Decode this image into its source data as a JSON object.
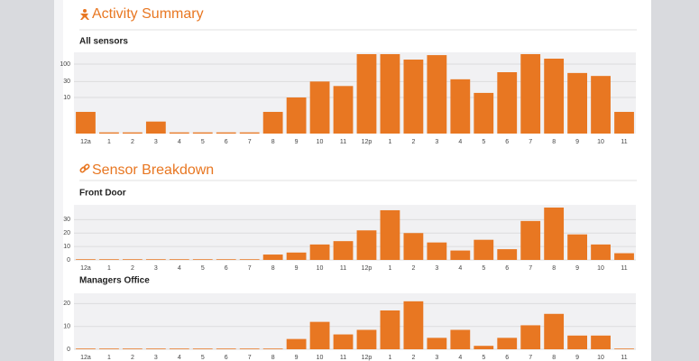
{
  "sections": [
    {
      "title": "Activity Summary"
    },
    {
      "title": "Sensor Breakdown"
    }
  ],
  "chart_data": [
    {
      "type": "bar",
      "title": "All sensors",
      "color": "#e87722",
      "log_scale": true,
      "grid": true,
      "categories": [
        "12a",
        "1",
        "2",
        "3",
        "4",
        "5",
        "6",
        "7",
        "8",
        "9",
        "10",
        "11",
        "12p",
        "1",
        "2",
        "3",
        "4",
        "5",
        "6",
        "7",
        "8",
        "9",
        "10",
        "11"
      ],
      "values": [
        3.7,
        0.9,
        0.9,
        1.9,
        0.9,
        0.9,
        0.9,
        0.9,
        3.7,
        10,
        30,
        22,
        198,
        198,
        136,
        185,
        35,
        13.7,
        57,
        198,
        145,
        54,
        44,
        3.7
      ],
      "ylim": [
        0.83,
        224
      ],
      "yticks": [
        10,
        30,
        100
      ]
    },
    {
      "type": "bar",
      "title": "Front Door",
      "color": "#e87722",
      "log_scale": false,
      "grid": true,
      "categories": [
        "12a",
        "1",
        "2",
        "3",
        "4",
        "5",
        "6",
        "7",
        "8",
        "9",
        "10",
        "11",
        "12p",
        "1",
        "2",
        "3",
        "4",
        "5",
        "6",
        "7",
        "8",
        "9",
        "10",
        "11"
      ],
      "values": [
        0.5,
        0.5,
        0.5,
        0.5,
        0.5,
        0.5,
        0.5,
        0.5,
        4,
        5.5,
        11.5,
        14,
        22,
        37,
        20,
        13,
        7,
        15,
        8,
        29,
        39,
        19,
        11.5,
        5
      ],
      "ylim": [
        0,
        41
      ],
      "yticks": [
        0,
        10,
        20,
        30
      ]
    },
    {
      "type": "bar",
      "title": "Managers Office",
      "color": "#e87722",
      "log_scale": false,
      "grid": true,
      "categories": [
        "12a",
        "1",
        "2",
        "3",
        "4",
        "5",
        "6",
        "7",
        "8",
        "9",
        "10",
        "11",
        "12p",
        "1",
        "2",
        "3",
        "4",
        "5",
        "6",
        "7",
        "8",
        "9",
        "10",
        "11"
      ],
      "values": [
        0.3,
        0.3,
        0.3,
        0.3,
        0.3,
        0.3,
        0.3,
        0.3,
        0.3,
        4.5,
        12,
        6.5,
        8.5,
        17,
        21,
        5,
        8.5,
        1.5,
        5,
        10.5,
        15.5,
        6,
        6,
        0.3
      ],
      "ylim": [
        0,
        24.5
      ],
      "yticks": [
        0,
        10,
        20
      ]
    }
  ]
}
